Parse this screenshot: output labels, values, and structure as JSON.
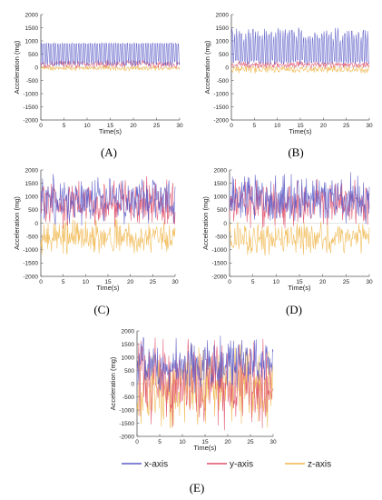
{
  "colors": {
    "x_axis": "#5b5bc8",
    "y_axis": "#e0506a",
    "z_axis": "#f0b64a",
    "axis": "#555555",
    "grid": "#dddddd"
  },
  "chart_data": [
    {
      "type": "line",
      "panel": "(A)",
      "xlabel": "Time(s)",
      "ylabel": "Acceleration (mg)",
      "xlim": [
        0,
        30
      ],
      "ylim": [
        -2000,
        2000
      ],
      "x_ticks": [
        "0",
        "5",
        "10",
        "15",
        "20",
        "25",
        "30"
      ],
      "y_ticks": [
        "2000",
        "1500",
        "1000",
        "500",
        "0",
        "-500",
        "-1000",
        "-1500",
        "-2000"
      ],
      "grid": false,
      "series_profile": {
        "x-axis": [
          50,
          920
        ],
        "y-axis": [
          -50,
          300
        ],
        "z-axis": [
          -150,
          80
        ]
      }
    },
    {
      "type": "line",
      "panel": "(B)",
      "xlabel": "Time(s)",
      "ylabel": "Acceleration (mg)",
      "xlim": [
        0,
        30
      ],
      "ylim": [
        -2000,
        2000
      ],
      "x_ticks": [
        "0",
        "5",
        "10",
        "15",
        "20",
        "25",
        "30"
      ],
      "y_ticks": [
        "2000",
        "1500",
        "1000",
        "500",
        "0",
        "-500",
        "-1000",
        "-1500",
        "-2000"
      ],
      "grid": false,
      "series_profile": {
        "x-axis": [
          100,
          1500
        ],
        "y-axis": [
          -60,
          250
        ],
        "z-axis": [
          -250,
          100
        ]
      }
    },
    {
      "type": "line",
      "panel": "(C)",
      "xlabel": "Time(s)",
      "ylabel": "Acceleration (mg)",
      "xlim": [
        0,
        30
      ],
      "ylim": [
        -2000,
        2000
      ],
      "x_ticks": [
        "0",
        "5",
        "10",
        "15",
        "20",
        "25",
        "30"
      ],
      "y_ticks": [
        "2000",
        "1500",
        "1000",
        "500",
        "0",
        "-500",
        "-1000",
        "-1500",
        "-2000"
      ],
      "grid": false,
      "series_profile": {
        "x-axis": [
          -200,
          1950
        ],
        "y-axis": [
          -300,
          1800
        ],
        "z-axis": [
          -1300,
          200
        ]
      }
    },
    {
      "type": "line",
      "panel": "(D)",
      "xlabel": "Time(s)",
      "ylabel": "Acceleration (mg)",
      "xlim": [
        0,
        30
      ],
      "ylim": [
        -2000,
        2000
      ],
      "x_ticks": [
        "0",
        "5",
        "10",
        "15",
        "20",
        "25",
        "30"
      ],
      "y_ticks": [
        "2000",
        "1500",
        "1000",
        "500",
        "0",
        "-500",
        "-1000",
        "-1500",
        "-2000"
      ],
      "grid": false,
      "series_profile": {
        "x-axis": [
          -200,
          1950
        ],
        "y-axis": [
          -300,
          1800
        ],
        "z-axis": [
          -1300,
          200
        ]
      }
    },
    {
      "type": "line",
      "panel": "(E)",
      "xlabel": "Time(s)",
      "ylabel": "Acceleration (mg)",
      "xlim": [
        0,
        30
      ],
      "ylim": [
        -2000,
        2000
      ],
      "x_ticks": [
        "0",
        "5",
        "10",
        "15",
        "20",
        "25",
        "30"
      ],
      "y_ticks": [
        "2000",
        "1500",
        "1000",
        "500",
        "0",
        "-500",
        "-1000",
        "-1500",
        "-2000"
      ],
      "grid": false,
      "series_profile": {
        "x-axis": [
          -500,
          1900
        ],
        "y-axis": [
          -1900,
          1900
        ],
        "z-axis": [
          -1900,
          1600
        ]
      }
    }
  ],
  "legend": {
    "placement": "bottom",
    "items": [
      {
        "name": "x-axis",
        "color": "#5b5bc8"
      },
      {
        "name": "y-axis",
        "color": "#e0506a"
      },
      {
        "name": "z-axis",
        "color": "#f0b64a"
      }
    ]
  }
}
